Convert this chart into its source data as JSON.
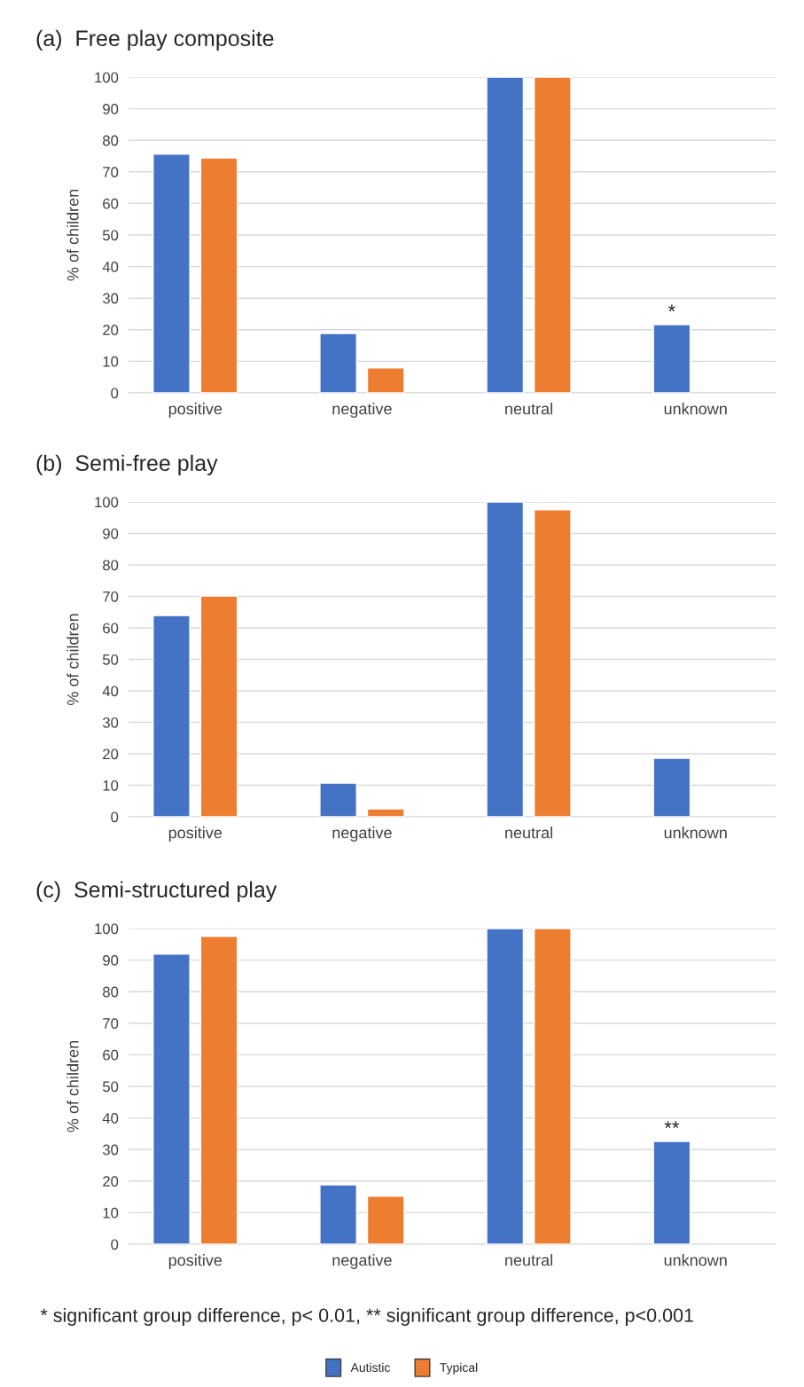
{
  "chart_data": [
    {
      "type": "bar",
      "title": "(a)  Free play composite",
      "ylabel": "% of children",
      "categories": [
        "positive",
        "negative",
        "neutral",
        "unknown"
      ],
      "series": [
        {
          "color": "#4472c4",
          "values": [
            75.6,
            18.8,
            100,
            21.6
          ]
        },
        {
          "color": "#ed7d31",
          "values": [
            74.4,
            7.9,
            100,
            null
          ]
        }
      ],
      "ylim": [
        0,
        100
      ],
      "yticks": [
        0,
        10,
        20,
        30,
        40,
        50,
        60,
        70,
        80,
        90,
        100
      ],
      "grid": "y",
      "annotations": [
        "*"
      ]
    },
    {
      "type": "bar",
      "title": "(b)  Semi-free play",
      "ylabel": "% of children",
      "categories": [
        "positive",
        "negative",
        "neutral",
        "unknown"
      ],
      "series": [
        {
          "color": "#4472c4",
          "values": [
            63.9,
            10.7,
            100,
            18.6
          ]
        },
        {
          "color": "#ed7d31",
          "values": [
            70.1,
            2.5,
            97.5,
            null
          ]
        }
      ],
      "ylim": [
        0,
        100
      ],
      "yticks": [
        0,
        10,
        20,
        30,
        40,
        50,
        60,
        70,
        80,
        90,
        100
      ],
      "grid": "y"
    },
    {
      "type": "bar",
      "title": "(c)  Semi-structured play",
      "ylabel": "% of children",
      "categories": [
        "positive",
        "negative",
        "neutral",
        "unknown"
      ],
      "series": [
        {
          "name": "Autistic",
          "color": "#4472c4",
          "values": [
            91.9,
            18.8,
            100,
            32.6
          ]
        },
        {
          "name": "Typical",
          "color": "#ed7d31",
          "values": [
            97.5,
            15.2,
            100,
            null
          ]
        }
      ],
      "ylim": [
        0,
        100
      ],
      "yticks": [
        0,
        10,
        20,
        30,
        40,
        50,
        60,
        70,
        80,
        90,
        100
      ],
      "grid": "y",
      "legend": "bottom",
      "annotations": [
        "**",
        "* significant group difference, p< 0.01, ** significant group difference, p<0.001"
      ]
    }
  ]
}
